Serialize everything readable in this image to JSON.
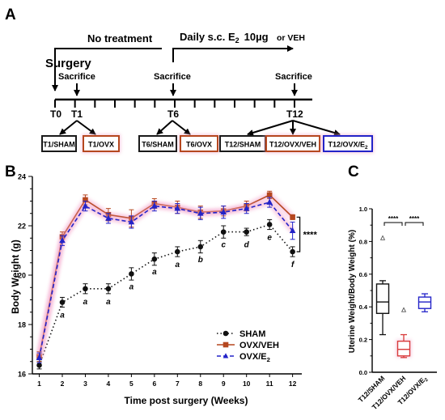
{
  "panels": {
    "a": "A",
    "b": "B",
    "c": "C"
  },
  "timeline": {
    "no_treatment": "No treatment",
    "daily_prefix": "Daily s.c. E",
    "daily_sub": "2",
    "daily_dose": "10µg",
    "or_veh": "or VEH",
    "surgery": "Surgery",
    "sacrifice": "Sacrifice",
    "timepoints": [
      "T0",
      "T1",
      "T6",
      "T12"
    ],
    "groups": [
      {
        "label": "T1/SHAM",
        "sub": "",
        "border": "#1a1a1a"
      },
      {
        "label": "T1/OVX",
        "sub": "",
        "border": "#b5471f"
      },
      {
        "label": "T6/SHAM",
        "sub": "",
        "border": "#1a1a1a"
      },
      {
        "label": "T6/OVX",
        "sub": "",
        "border": "#b5471f"
      },
      {
        "label": "T12/SHAM",
        "sub": "",
        "border": "#1a1a1a"
      },
      {
        "label": "T12/OVX/VEH",
        "sub": "",
        "border": "#b5471f"
      },
      {
        "label": "T12/OVX/E",
        "sub": "2",
        "border": "#2323c8"
      }
    ]
  },
  "chart_data": [
    {
      "type": "line",
      "panel": "B",
      "xlabel": "Time post surgery (Weeks)",
      "ylabel": "Body Weight (g)",
      "xlim": [
        0.7,
        12.4
      ],
      "ylim": [
        16,
        24
      ],
      "x": [
        1,
        2,
        3,
        4,
        5,
        6,
        7,
        8,
        9,
        10,
        11,
        12
      ],
      "y_ticks": [
        16,
        18,
        20,
        22,
        24
      ],
      "series": [
        {
          "name": "SHAM",
          "color": "#111111",
          "marker": "circle",
          "line": "dotted",
          "values": [
            16.35,
            18.9,
            19.45,
            19.45,
            20.05,
            20.65,
            20.95,
            21.15,
            21.75,
            21.75,
            22.05,
            20.95
          ],
          "errors": [
            0.15,
            0.2,
            0.2,
            0.2,
            0.25,
            0.25,
            0.2,
            0.25,
            0.25,
            0.15,
            0.2,
            0.2
          ]
        },
        {
          "name": "OVX/VEH",
          "color": "#b5471f",
          "marker": "square",
          "line": "solid",
          "values": [
            16.7,
            21.55,
            23.05,
            22.45,
            22.3,
            22.9,
            22.75,
            22.55,
            22.6,
            22.8,
            23.25,
            22.35
          ],
          "errors": [
            0.2,
            0.2,
            0.2,
            0.25,
            0.35,
            0.2,
            0.25,
            0.25,
            0.2,
            0.2,
            0.15,
            0.1
          ]
        },
        {
          "name": "OVX/E",
          "name_sub": "2",
          "color": "#2323c8",
          "marker": "triangle",
          "line": "dashed",
          "values": [
            16.65,
            21.4,
            22.8,
            22.3,
            22.15,
            22.8,
            22.7,
            22.5,
            22.55,
            22.7,
            22.95,
            21.8
          ],
          "errors": [
            0.2,
            0.2,
            0.2,
            0.2,
            0.25,
            0.2,
            0.2,
            0.25,
            0.25,
            0.2,
            0.2,
            0.35
          ]
        }
      ],
      "annotations": [
        {
          "text": "a",
          "x": 2
        },
        {
          "text": "a",
          "x": 3
        },
        {
          "text": "a",
          "x": 4
        },
        {
          "text": "a",
          "x": 5
        },
        {
          "text": "a",
          "x": 6
        },
        {
          "text": "a",
          "x": 7
        },
        {
          "text": "b",
          "x": 8
        },
        {
          "text": "c",
          "x": 9
        },
        {
          "text": "d",
          "x": 10
        },
        {
          "text": "e",
          "x": 11
        },
        {
          "text": "f",
          "x": 12
        }
      ],
      "significance": "****",
      "legend": "bottom-right"
    },
    {
      "type": "box",
      "panel": "C",
      "ylabel": "Uterine Weight/Body Weight (%)",
      "ylim": [
        0,
        1.0
      ],
      "y_ticks": [
        0,
        0.2,
        0.4,
        0.6,
        0.8,
        1.0
      ],
      "y_tick_labels": [
        "0.0",
        "0.2",
        "0.4",
        "0.6",
        "0.8",
        "1.0"
      ],
      "categories": [
        {
          "label": "T12/SHAM",
          "sub": ""
        },
        {
          "label": "T12/OVX/VEH",
          "sub": ""
        },
        {
          "label": "T12/OVX/E",
          "sub": "2"
        }
      ],
      "boxes": [
        {
          "min": 0.23,
          "q1": 0.36,
          "median": 0.43,
          "q3": 0.54,
          "max": 0.56,
          "outliers": [
            0.82
          ],
          "color": "#111111"
        },
        {
          "min": 0.09,
          "q1": 0.1,
          "median": 0.14,
          "q3": 0.19,
          "max": 0.23,
          "outliers": [
            0.38
          ],
          "color": "#d83a3a"
        },
        {
          "min": 0.37,
          "q1": 0.39,
          "median": 0.43,
          "q3": 0.46,
          "max": 0.48,
          "outliers": [],
          "color": "#2323c8"
        }
      ],
      "significance": [
        {
          "from": 0,
          "to": 1,
          "label": "****"
        },
        {
          "from": 1,
          "to": 2,
          "label": "****"
        }
      ]
    }
  ]
}
